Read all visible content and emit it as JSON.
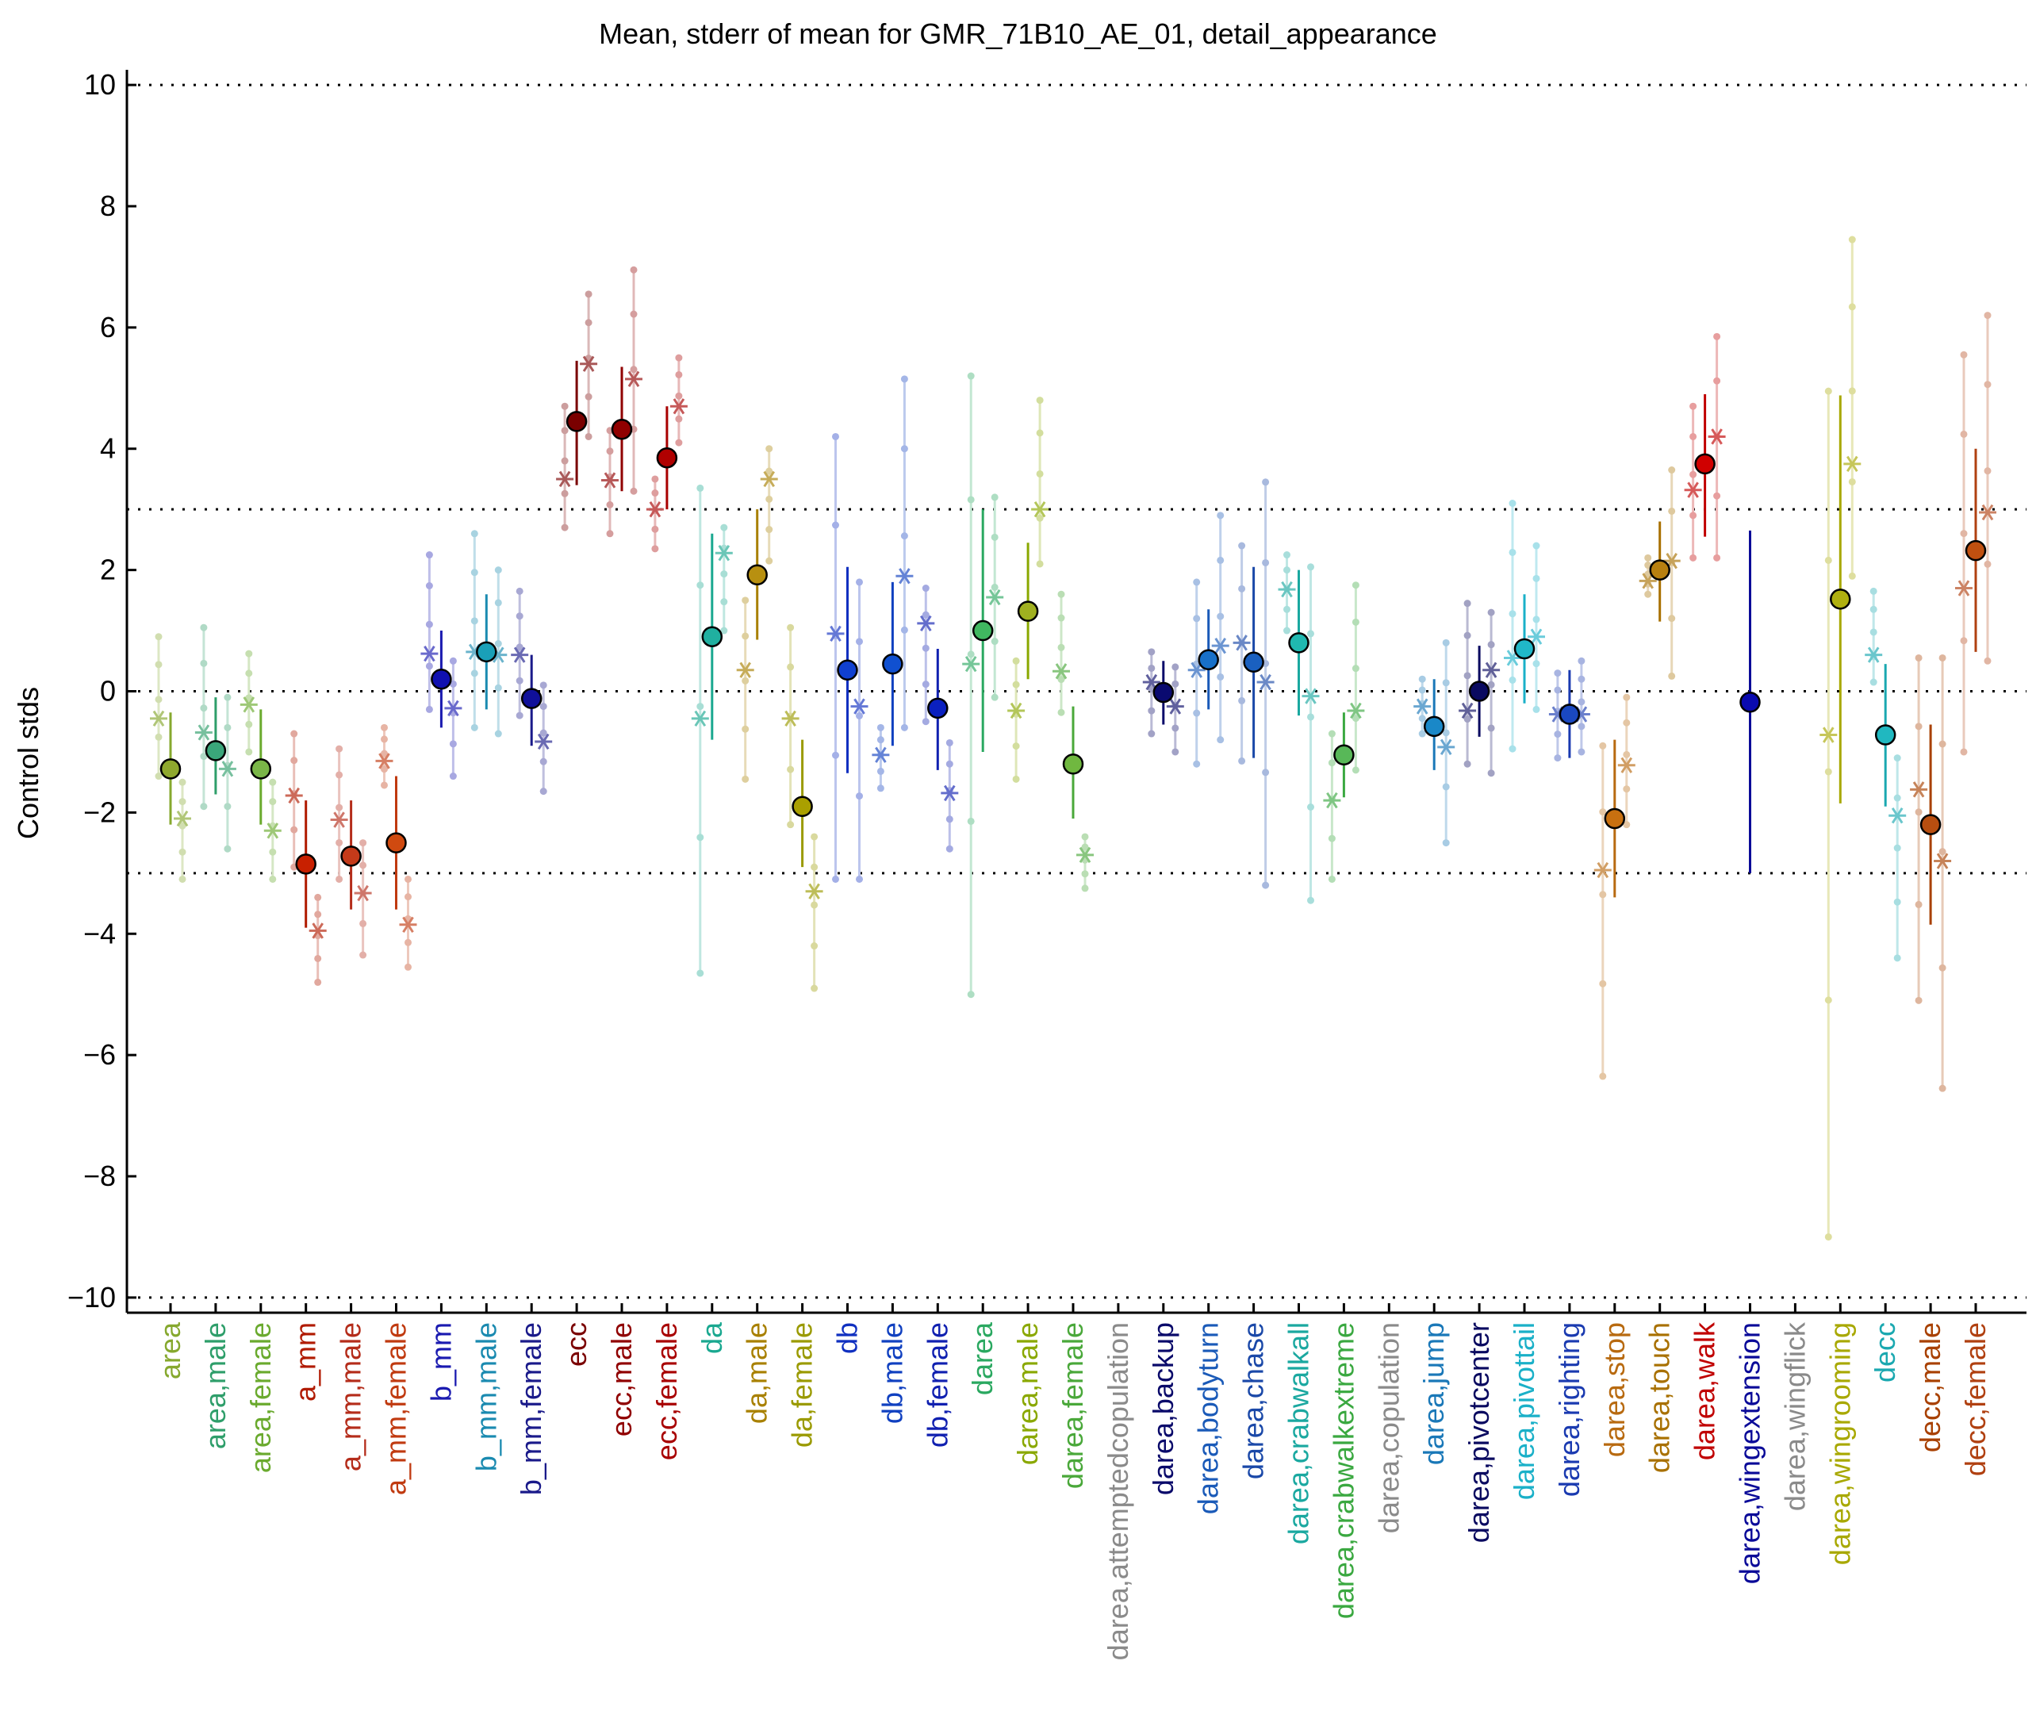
{
  "chart_data": {
    "type": "scatter",
    "title": "Mean, stderr of mean for GMR_71B10_AE_01, detail_appearance",
    "xlabel": "",
    "ylabel": "Control stds",
    "ylim": [
      -10.25,
      10.25
    ],
    "yticks": [
      10,
      8,
      6,
      4,
      2,
      0,
      -2,
      -4,
      -6,
      -8,
      -10
    ],
    "ytick_labels": [
      "10",
      "8",
      "6",
      "4",
      "2",
      "0",
      "−2",
      "−4",
      "−6",
      "−8",
      "−10"
    ],
    "reference_lines": [
      10,
      3,
      0,
      -3,
      -10
    ],
    "grid": false,
    "legend": "none",
    "categories": [
      {
        "label": "area",
        "mean": -1.28,
        "err_lo": -2.2,
        "err_hi": -0.35,
        "color": "#86a82e",
        "fill": "#8fa82e",
        "star1": -0.45,
        "star2": -2.1,
        "range1": [
          -1.4,
          0.9
        ],
        "range2": [
          -3.1,
          -1.5
        ]
      },
      {
        "label": "area,male",
        "mean": -0.98,
        "err_lo": -1.7,
        "err_hi": -0.1,
        "color": "#2e9e6a",
        "fill": "#3aa67a",
        "star1": -0.68,
        "star2": -1.28,
        "range1": [
          -1.9,
          1.05
        ],
        "range2": [
          -2.6,
          -0.1
        ]
      },
      {
        "label": "area,female",
        "mean": -1.28,
        "err_lo": -2.2,
        "err_hi": -0.3,
        "color": "#6aaa2e",
        "fill": "#7ab648",
        "star1": -0.22,
        "star2": -2.3,
        "range1": [
          -1.0,
          0.62
        ],
        "range2": [
          -3.1,
          -1.5
        ]
      },
      {
        "label": "a_mm",
        "mean": -2.85,
        "err_lo": -3.9,
        "err_hi": -1.8,
        "color": "#b01a00",
        "fill": "#c82000",
        "star1": -1.72,
        "star2": -3.95,
        "range1": [
          -2.9,
          -0.7
        ],
        "range2": [
          -4.8,
          -3.4
        ]
      },
      {
        "label": "a_mm,male",
        "mean": -2.72,
        "err_lo": -3.6,
        "err_hi": -1.8,
        "color": "#b42c1a",
        "fill": "#c43a1a",
        "star1": -2.12,
        "star2": -3.33,
        "range1": [
          -3.1,
          -0.95
        ],
        "range2": [
          -4.35,
          -2.5
        ]
      },
      {
        "label": "a_mm,female",
        "mean": -2.5,
        "err_lo": -3.6,
        "err_hi": -1.4,
        "color": "#c03a10",
        "fill": "#d04a10",
        "star1": -1.15,
        "star2": -3.85,
        "range1": [
          -1.55,
          -0.6
        ],
        "range2": [
          -4.55,
          -3.1
        ]
      },
      {
        "label": "b_mm",
        "mean": 0.2,
        "err_lo": -0.6,
        "err_hi": 1.0,
        "color": "#1a1ab0",
        "fill": "#1010b0",
        "star1": 0.62,
        "star2": -0.28,
        "range1": [
          -0.3,
          2.25
        ],
        "range2": [
          -1.4,
          0.5
        ]
      },
      {
        "label": "b_mm,male",
        "mean": 0.65,
        "err_lo": -0.3,
        "err_hi": 1.6,
        "color": "#1a8ab0",
        "fill": "#1aa0b8",
        "star1": 0.65,
        "star2": 0.6,
        "range1": [
          -0.6,
          2.6
        ],
        "range2": [
          -0.7,
          2.0
        ]
      },
      {
        "label": "b_mm,female",
        "mean": -0.12,
        "err_lo": -0.9,
        "err_hi": 0.6,
        "color": "#1a1a8a",
        "fill": "#10109a",
        "star1": 0.6,
        "star2": -0.83,
        "range1": [
          -0.4,
          1.65
        ],
        "range2": [
          -1.65,
          0.1
        ]
      },
      {
        "label": "ecc",
        "mean": 4.45,
        "err_lo": 3.4,
        "err_hi": 5.45,
        "color": "#7a0000",
        "fill": "#7a0000",
        "star1": 3.5,
        "star2": 5.4,
        "range1": [
          2.7,
          4.7
        ],
        "range2": [
          4.2,
          6.55
        ]
      },
      {
        "label": "ecc,male",
        "mean": 4.32,
        "err_lo": 3.3,
        "err_hi": 5.35,
        "color": "#900000",
        "fill": "#900000",
        "star1": 3.48,
        "star2": 5.15,
        "range1": [
          2.6,
          4.3
        ],
        "range2": [
          3.3,
          6.95
        ]
      },
      {
        "label": "ecc,female",
        "mean": 3.85,
        "err_lo": 3.0,
        "err_hi": 4.7,
        "color": "#a80000",
        "fill": "#b00000",
        "star1": 3.0,
        "star2": 4.7,
        "range1": [
          2.35,
          3.5
        ],
        "range2": [
          4.1,
          5.5
        ]
      },
      {
        "label": "da",
        "mean": 0.9,
        "err_lo": -0.8,
        "err_hi": 2.6,
        "color": "#1aa890",
        "fill": "#20b0a0",
        "star1": -0.45,
        "star2": 2.28,
        "range1": [
          -4.65,
          3.35
        ],
        "range2": [
          1.0,
          2.7
        ]
      },
      {
        "label": "da,male",
        "mean": 1.92,
        "err_lo": 0.85,
        "err_hi": 3.0,
        "color": "#a88000",
        "fill": "#b89010",
        "star1": 0.35,
        "star2": 3.5,
        "range1": [
          -1.45,
          1.5
        ],
        "range2": [
          2.15,
          4.0
        ]
      },
      {
        "label": "da,female",
        "mean": -1.9,
        "err_lo": -2.9,
        "err_hi": -0.8,
        "color": "#9a9a00",
        "fill": "#aaa000",
        "star1": -0.45,
        "star2": -3.3,
        "range1": [
          -2.2,
          1.05
        ],
        "range2": [
          -4.9,
          -2.4
        ]
      },
      {
        "label": "db",
        "mean": 0.35,
        "err_lo": -1.35,
        "err_hi": 2.05,
        "color": "#1030c0",
        "fill": "#1040d0",
        "star1": 0.95,
        "star2": -0.25,
        "range1": [
          -3.1,
          4.2
        ],
        "range2": [
          -3.1,
          1.8
        ]
      },
      {
        "label": "db,male",
        "mean": 0.45,
        "err_lo": -0.9,
        "err_hi": 1.8,
        "color": "#1040c0",
        "fill": "#1050d0",
        "star1": -1.05,
        "star2": 1.9,
        "range1": [
          -1.6,
          -0.6
        ],
        "range2": [
          -0.6,
          5.15
        ]
      },
      {
        "label": "db,female",
        "mean": -0.28,
        "err_lo": -1.3,
        "err_hi": 0.7,
        "color": "#1020b0",
        "fill": "#0a20c0",
        "star1": 1.12,
        "star2": -1.68,
        "range1": [
          -0.5,
          1.7
        ],
        "range2": [
          -2.6,
          -0.85
        ]
      },
      {
        "label": "darea",
        "mean": 1.0,
        "err_lo": -1.0,
        "err_hi": 3.0,
        "color": "#2aa860",
        "fill": "#40b860",
        "star1": 0.45,
        "star2": 1.55,
        "range1": [
          -5.0,
          5.2
        ],
        "range2": [
          -0.1,
          3.2
        ]
      },
      {
        "label": "darea,male",
        "mean": 1.32,
        "err_lo": 0.2,
        "err_hi": 2.45,
        "color": "#8aa800",
        "fill": "#a0b020",
        "star1": -0.32,
        "star2": 3.0,
        "range1": [
          -1.45,
          0.5
        ],
        "range2": [
          2.1,
          4.8
        ]
      },
      {
        "label": "darea,female",
        "mean": -1.2,
        "err_lo": -2.1,
        "err_hi": -0.25,
        "color": "#4aa83a",
        "fill": "#70b840",
        "star1": 0.33,
        "star2": -2.7,
        "range1": [
          -0.35,
          1.6
        ],
        "range2": [
          -3.25,
          -2.4
        ]
      },
      {
        "label": "darea,attemptedcopulation",
        "color": "#8a8a8a"
      },
      {
        "label": "darea,backup",
        "mean": -0.02,
        "err_lo": -0.55,
        "err_hi": 0.5,
        "color": "#0a0a6a",
        "fill": "#0a0a70",
        "star1": 0.15,
        "star2": -0.25,
        "range1": [
          -0.7,
          0.65
        ],
        "range2": [
          -1.0,
          0.4
        ]
      },
      {
        "label": "darea,bodyturn",
        "mean": 0.52,
        "err_lo": -0.3,
        "err_hi": 1.35,
        "color": "#1a5ab8",
        "fill": "#1870c8",
        "star1": 0.35,
        "star2": 0.75,
        "range1": [
          -1.2,
          1.8
        ],
        "range2": [
          -0.8,
          2.9
        ]
      },
      {
        "label": "darea,chase",
        "mean": 0.48,
        "err_lo": -1.1,
        "err_hi": 2.05,
        "color": "#1a48a8",
        "fill": "#1a60c0",
        "star1": 0.8,
        "star2": 0.15,
        "range1": [
          -1.15,
          2.4
        ],
        "range2": [
          -3.2,
          3.45
        ]
      },
      {
        "label": "darea,crabwalkall",
        "mean": 0.8,
        "err_lo": -0.4,
        "err_hi": 2.0,
        "color": "#1aa8a0",
        "fill": "#20b8b0",
        "star1": 1.68,
        "star2": -0.08,
        "range1": [
          1.0,
          2.25
        ],
        "range2": [
          -3.45,
          2.05
        ]
      },
      {
        "label": "darea,crabwalkextreme",
        "mean": -1.05,
        "err_lo": -1.75,
        "err_hi": -0.35,
        "color": "#3aa840",
        "fill": "#58b858",
        "star1": -1.8,
        "star2": -0.32,
        "range1": [
          -3.1,
          -0.7
        ],
        "range2": [
          -1.3,
          1.75
        ]
      },
      {
        "label": "darea,copulation",
        "color": "#8a8a8a"
      },
      {
        "label": "darea,jump",
        "mean": -0.58,
        "err_lo": -1.3,
        "err_hi": 0.2,
        "color": "#1a78b8",
        "fill": "#1a88c8",
        "star1": -0.25,
        "star2": -0.92,
        "range1": [
          -0.7,
          0.2
        ],
        "range2": [
          -2.5,
          0.8
        ]
      },
      {
        "label": "darea,pivotcenter",
        "mean": 0.0,
        "err_lo": -0.75,
        "err_hi": 0.75,
        "color": "#0a0a60",
        "fill": "#0a0a60",
        "star1": -0.32,
        "star2": 0.35,
        "range1": [
          -1.2,
          1.45
        ],
        "range2": [
          -1.35,
          1.3
        ]
      },
      {
        "label": "darea,pivottail",
        "mean": 0.7,
        "err_lo": -0.2,
        "err_hi": 1.6,
        "color": "#1ab0c8",
        "fill": "#20b8c8",
        "star1": 0.55,
        "star2": 0.9,
        "range1": [
          -0.95,
          3.1
        ],
        "range2": [
          -0.3,
          2.4
        ]
      },
      {
        "label": "darea,righting",
        "mean": -0.38,
        "err_lo": -1.1,
        "err_hi": 0.35,
        "color": "#1a3ab0",
        "fill": "#1a48c0",
        "star1": -0.38,
        "star2": -0.38,
        "range1": [
          -1.1,
          0.3
        ],
        "range2": [
          -1.0,
          0.5
        ]
      },
      {
        "label": "darea,stop",
        "mean": -2.1,
        "err_lo": -3.4,
        "err_hi": -0.8,
        "color": "#b86a10",
        "fill": "#c87010",
        "star1": -2.95,
        "star2": -1.22,
        "range1": [
          -6.35,
          -0.9
        ],
        "range2": [
          -2.2,
          -0.1
        ]
      },
      {
        "label": "darea,touch",
        "mean": 2.0,
        "err_lo": 1.15,
        "err_hi": 2.8,
        "color": "#a87000",
        "fill": "#b88010",
        "star1": 1.82,
        "star2": 2.15,
        "range1": [
          1.6,
          2.2
        ],
        "range2": [
          0.25,
          3.65
        ]
      },
      {
        "label": "darea,walk",
        "mean": 3.75,
        "err_lo": 2.55,
        "err_hi": 4.9,
        "color": "#c00000",
        "fill": "#d00000",
        "star1": 3.32,
        "star2": 4.2,
        "range1": [
          2.2,
          4.7
        ],
        "range2": [
          2.2,
          5.85
        ]
      },
      {
        "label": "darea,wingextension",
        "mean": -0.18,
        "err_lo": -3.0,
        "err_hi": 2.65,
        "color": "#0a0a98",
        "fill": "#0a0ab0"
      },
      {
        "label": "darea,wingflick",
        "color": "#8a8a8a"
      },
      {
        "label": "darea,wingrooming",
        "mean": 1.52,
        "err_lo": -1.85,
        "err_hi": 4.88,
        "color": "#a8a800",
        "fill": "#b0b010",
        "star1": -0.72,
        "star2": 3.75,
        "range1": [
          -9.0,
          4.95
        ],
        "range2": [
          1.9,
          7.45
        ]
      },
      {
        "label": "decc",
        "mean": -0.72,
        "err_lo": -1.9,
        "err_hi": 0.45,
        "color": "#1aa8b0",
        "fill": "#20b8c0",
        "star1": 0.6,
        "star2": -2.05,
        "range1": [
          0.15,
          1.65
        ],
        "range2": [
          -4.4,
          -1.1
        ]
      },
      {
        "label": "decc,male",
        "mean": -2.2,
        "err_lo": -3.85,
        "err_hi": -0.55,
        "color": "#a84000",
        "fill": "#b84e10",
        "star1": -1.62,
        "star2": -2.8,
        "range1": [
          -5.1,
          0.55
        ],
        "range2": [
          -6.55,
          0.55
        ]
      },
      {
        "label": "decc,female",
        "mean": 2.32,
        "err_lo": 0.65,
        "err_hi": 4.0,
        "color": "#b04010",
        "fill": "#c05010",
        "star1": 1.7,
        "star2": 2.95,
        "range1": [
          -1.0,
          5.55
        ],
        "range2": [
          0.5,
          6.2
        ]
      }
    ]
  }
}
